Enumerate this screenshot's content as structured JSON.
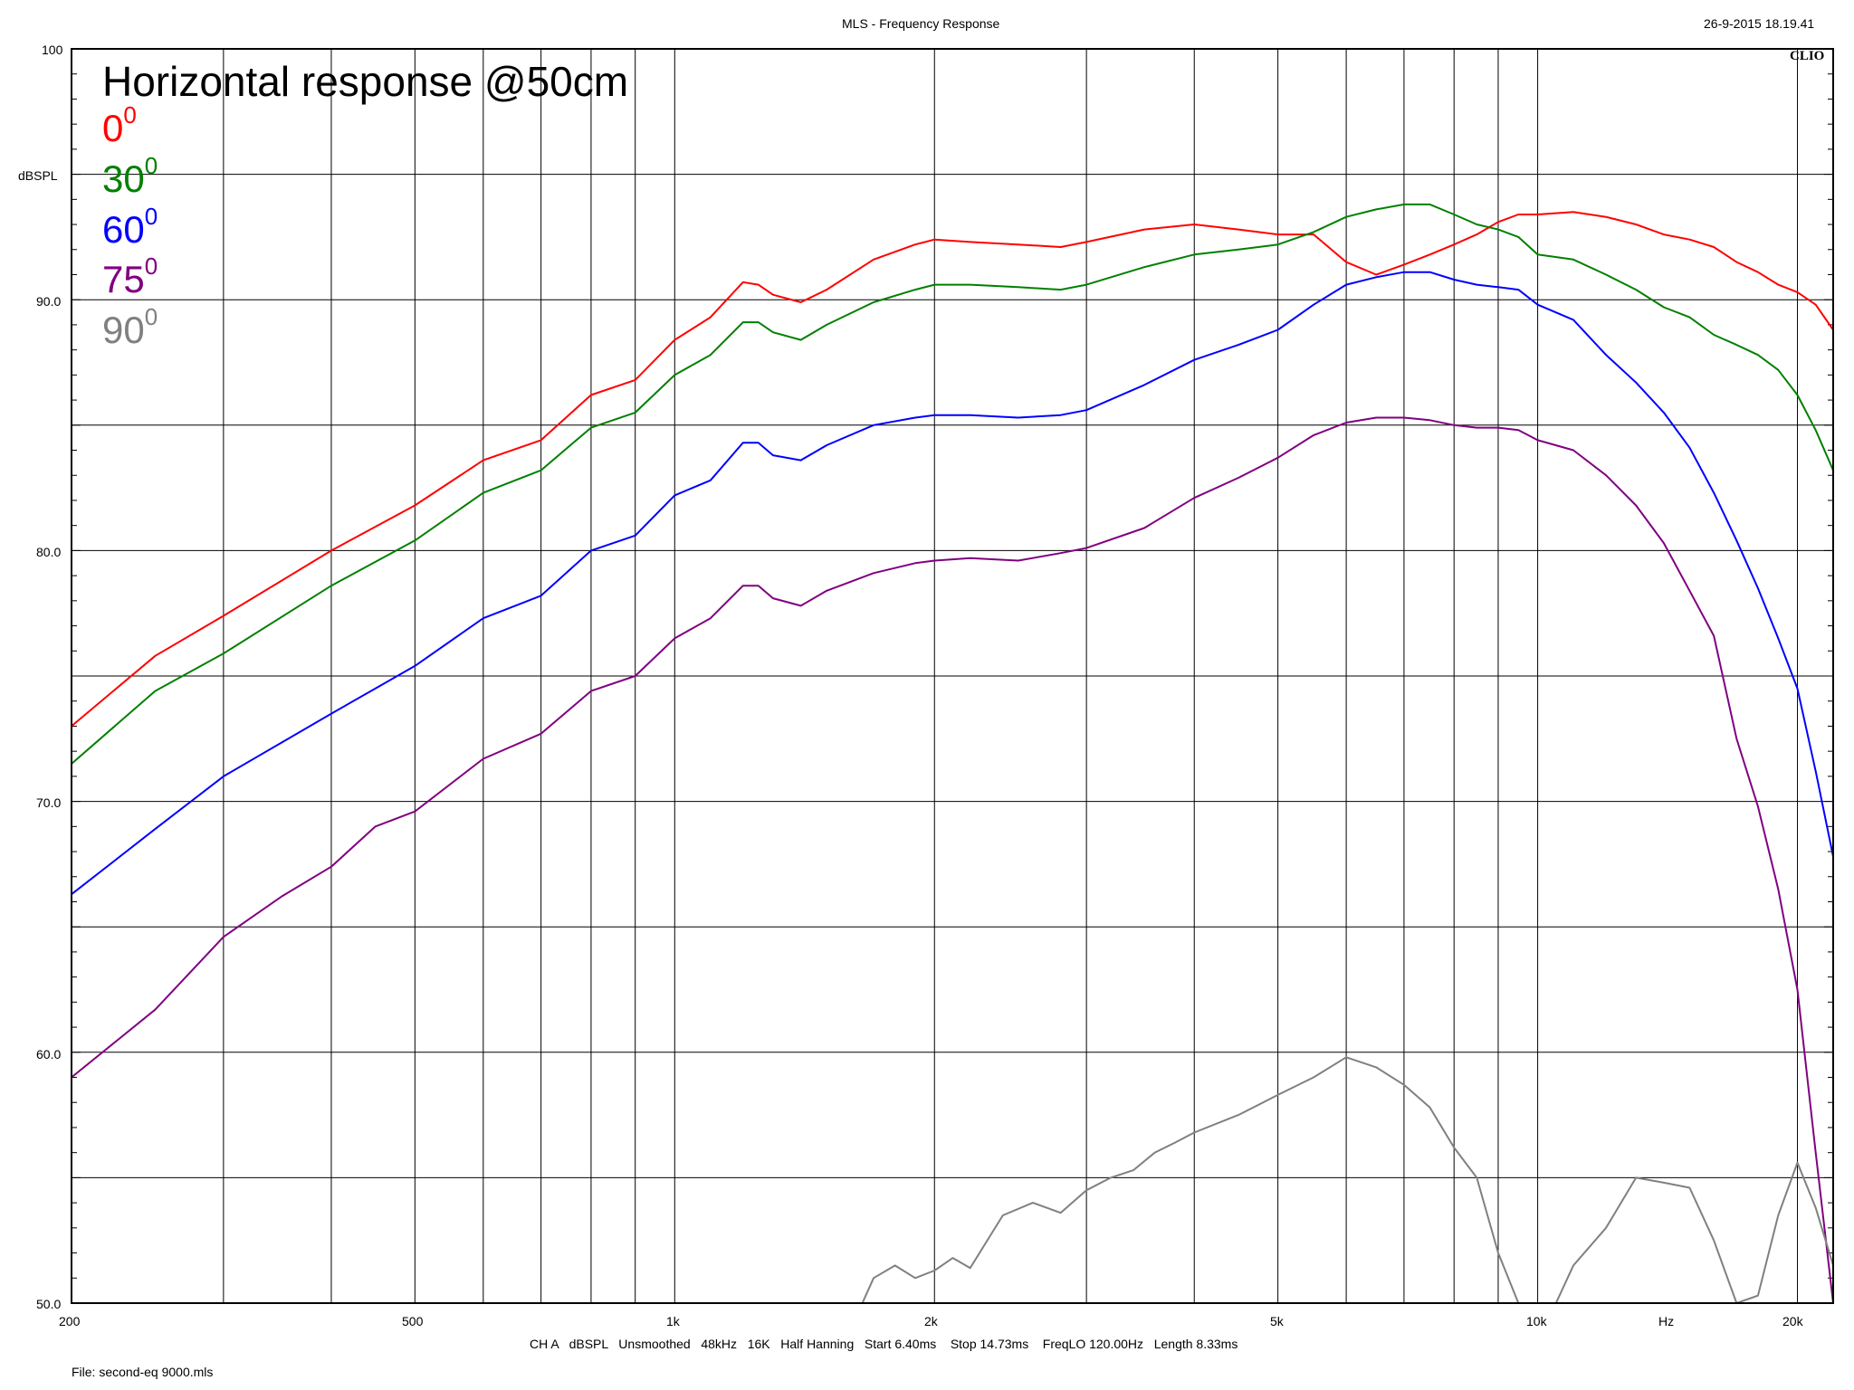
{
  "header": {
    "title": "MLS - Frequency Response",
    "timestamp": "26-9-2015 18.19.41",
    "brand": "CLIO"
  },
  "footer": {
    "settings": "CH A   dBSPL   Unsmoothed   48kHz   16K   Half Hanning   Start 6.40ms    Stop 14.73ms    FreqLO 120.00Hz   Length 8.33ms",
    "file": "File: second-eq 9000.mls"
  },
  "legend": {
    "title": "Horizontal response @50cm",
    "items": [
      {
        "name": "0",
        "sup": "0",
        "color": "#ff0000"
      },
      {
        "name": "30",
        "sup": "0",
        "color": "#008000"
      },
      {
        "name": "60",
        "sup": "0",
        "color": "#0000ff"
      },
      {
        "name": "75",
        "sup": "0",
        "color": "#800080"
      },
      {
        "name": "90",
        "sup": "0",
        "color": "#808080"
      }
    ]
  },
  "chart_data": {
    "type": "line",
    "title": "MLS - Frequency Response",
    "xscale": "log",
    "xlim": [
      200,
      22000
    ],
    "ylim": [
      50,
      100
    ],
    "ylabel": "dBSPL",
    "xlabel": "Hz",
    "x_ticks": [
      "200",
      "500",
      "1k",
      "2k",
      "5k",
      "10k",
      "Hz",
      "20k"
    ],
    "y_ticks": [
      "100",
      "dBSPL",
      "90.0",
      "80.0",
      "70.0",
      "60.0",
      "50.0"
    ],
    "grid": true,
    "series": [
      {
        "name": "0",
        "color": "#ff0000",
        "points": [
          [
            200,
            73.0
          ],
          [
            250,
            75.8
          ],
          [
            300,
            77.4
          ],
          [
            400,
            80.0
          ],
          [
            500,
            81.8
          ],
          [
            600,
            83.6
          ],
          [
            700,
            84.4
          ],
          [
            800,
            86.2
          ],
          [
            900,
            86.8
          ],
          [
            1000,
            88.4
          ],
          [
            1100,
            89.3
          ],
          [
            1200,
            90.7
          ],
          [
            1250,
            90.6
          ],
          [
            1300,
            90.2
          ],
          [
            1400,
            89.9
          ],
          [
            1500,
            90.4
          ],
          [
            1700,
            91.6
          ],
          [
            1900,
            92.2
          ],
          [
            2000,
            92.4
          ],
          [
            2200,
            92.3
          ],
          [
            2500,
            92.2
          ],
          [
            2800,
            92.1
          ],
          [
            3000,
            92.3
          ],
          [
            3500,
            92.8
          ],
          [
            4000,
            93.0
          ],
          [
            4500,
            92.8
          ],
          [
            5000,
            92.6
          ],
          [
            5500,
            92.6
          ],
          [
            6000,
            91.5
          ],
          [
            6500,
            91.0
          ],
          [
            7000,
            91.4
          ],
          [
            7500,
            91.8
          ],
          [
            8000,
            92.2
          ],
          [
            8500,
            92.6
          ],
          [
            9000,
            93.1
          ],
          [
            9500,
            93.4
          ],
          [
            10000,
            93.4
          ],
          [
            11000,
            93.5
          ],
          [
            12000,
            93.3
          ],
          [
            13000,
            93.0
          ],
          [
            14000,
            92.6
          ],
          [
            15000,
            92.4
          ],
          [
            16000,
            92.1
          ],
          [
            17000,
            91.5
          ],
          [
            18000,
            91.1
          ],
          [
            19000,
            90.6
          ],
          [
            20000,
            90.3
          ],
          [
            21000,
            89.8
          ],
          [
            22000,
            88.8
          ]
        ]
      },
      {
        "name": "30",
        "color": "#008000",
        "points": [
          [
            200,
            71.5
          ],
          [
            250,
            74.4
          ],
          [
            300,
            75.9
          ],
          [
            400,
            78.6
          ],
          [
            500,
            80.4
          ],
          [
            600,
            82.3
          ],
          [
            700,
            83.2
          ],
          [
            800,
            84.9
          ],
          [
            900,
            85.5
          ],
          [
            1000,
            87.0
          ],
          [
            1100,
            87.8
          ],
          [
            1200,
            89.1
          ],
          [
            1250,
            89.1
          ],
          [
            1300,
            88.7
          ],
          [
            1400,
            88.4
          ],
          [
            1500,
            89.0
          ],
          [
            1700,
            89.9
          ],
          [
            1900,
            90.4
          ],
          [
            2000,
            90.6
          ],
          [
            2200,
            90.6
          ],
          [
            2500,
            90.5
          ],
          [
            2800,
            90.4
          ],
          [
            3000,
            90.6
          ],
          [
            3500,
            91.3
          ],
          [
            4000,
            91.8
          ],
          [
            4500,
            92.0
          ],
          [
            5000,
            92.2
          ],
          [
            5500,
            92.7
          ],
          [
            6000,
            93.3
          ],
          [
            6500,
            93.6
          ],
          [
            7000,
            93.8
          ],
          [
            7500,
            93.8
          ],
          [
            8000,
            93.4
          ],
          [
            8500,
            93.0
          ],
          [
            9000,
            92.8
          ],
          [
            9500,
            92.5
          ],
          [
            10000,
            91.8
          ],
          [
            11000,
            91.6
          ],
          [
            12000,
            91.0
          ],
          [
            13000,
            90.4
          ],
          [
            14000,
            89.7
          ],
          [
            15000,
            89.3
          ],
          [
            16000,
            88.6
          ],
          [
            17000,
            88.2
          ],
          [
            18000,
            87.8
          ],
          [
            19000,
            87.2
          ],
          [
            20000,
            86.2
          ],
          [
            21000,
            84.8
          ],
          [
            22000,
            83.2
          ]
        ]
      },
      {
        "name": "60",
        "color": "#0000ff",
        "points": [
          [
            200,
            66.3
          ],
          [
            250,
            68.9
          ],
          [
            300,
            71.0
          ],
          [
            400,
            73.5
          ],
          [
            500,
            75.4
          ],
          [
            600,
            77.3
          ],
          [
            700,
            78.2
          ],
          [
            800,
            80.0
          ],
          [
            900,
            80.6
          ],
          [
            1000,
            82.2
          ],
          [
            1100,
            82.8
          ],
          [
            1200,
            84.3
          ],
          [
            1250,
            84.3
          ],
          [
            1300,
            83.8
          ],
          [
            1400,
            83.6
          ],
          [
            1500,
            84.2
          ],
          [
            1700,
            85.0
          ],
          [
            1900,
            85.3
          ],
          [
            2000,
            85.4
          ],
          [
            2200,
            85.4
          ],
          [
            2500,
            85.3
          ],
          [
            2800,
            85.4
          ],
          [
            3000,
            85.6
          ],
          [
            3500,
            86.6
          ],
          [
            4000,
            87.6
          ],
          [
            4500,
            88.2
          ],
          [
            5000,
            88.8
          ],
          [
            5500,
            89.8
          ],
          [
            6000,
            90.6
          ],
          [
            6500,
            90.9
          ],
          [
            7000,
            91.1
          ],
          [
            7500,
            91.1
          ],
          [
            8000,
            90.8
          ],
          [
            8500,
            90.6
          ],
          [
            9000,
            90.5
          ],
          [
            9500,
            90.4
          ],
          [
            10000,
            89.8
          ],
          [
            11000,
            89.2
          ],
          [
            12000,
            87.8
          ],
          [
            13000,
            86.7
          ],
          [
            14000,
            85.5
          ],
          [
            15000,
            84.1
          ],
          [
            16000,
            82.3
          ],
          [
            17000,
            80.4
          ],
          [
            18000,
            78.5
          ],
          [
            19000,
            76.5
          ],
          [
            20000,
            74.5
          ],
          [
            21000,
            71.2
          ],
          [
            22000,
            67.8
          ]
        ]
      },
      {
        "name": "75",
        "color": "#800080",
        "points": [
          [
            200,
            59.0
          ],
          [
            250,
            61.7
          ],
          [
            300,
            64.6
          ],
          [
            350,
            66.2
          ],
          [
            400,
            67.4
          ],
          [
            450,
            69.0
          ],
          [
            500,
            69.6
          ],
          [
            600,
            71.7
          ],
          [
            700,
            72.7
          ],
          [
            800,
            74.4
          ],
          [
            900,
            75.0
          ],
          [
            1000,
            76.5
          ],
          [
            1100,
            77.3
          ],
          [
            1200,
            78.6
          ],
          [
            1250,
            78.6
          ],
          [
            1300,
            78.1
          ],
          [
            1400,
            77.8
          ],
          [
            1500,
            78.4
          ],
          [
            1700,
            79.1
          ],
          [
            1900,
            79.5
          ],
          [
            2000,
            79.6
          ],
          [
            2200,
            79.7
          ],
          [
            2500,
            79.6
          ],
          [
            2800,
            79.9
          ],
          [
            3000,
            80.1
          ],
          [
            3500,
            80.9
          ],
          [
            4000,
            82.1
          ],
          [
            4500,
            82.9
          ],
          [
            5000,
            83.7
          ],
          [
            5500,
            84.6
          ],
          [
            6000,
            85.1
          ],
          [
            6500,
            85.3
          ],
          [
            7000,
            85.3
          ],
          [
            7500,
            85.2
          ],
          [
            8000,
            85.0
          ],
          [
            8500,
            84.9
          ],
          [
            9000,
            84.9
          ],
          [
            9500,
            84.8
          ],
          [
            10000,
            84.4
          ],
          [
            11000,
            84.0
          ],
          [
            12000,
            83.0
          ],
          [
            13000,
            81.8
          ],
          [
            14000,
            80.3
          ],
          [
            15000,
            78.4
          ],
          [
            16000,
            76.6
          ],
          [
            17000,
            72.5
          ],
          [
            18000,
            69.8
          ],
          [
            19000,
            66.5
          ],
          [
            20000,
            62.5
          ],
          [
            21000,
            56.0
          ],
          [
            22000,
            50.0
          ]
        ]
      },
      {
        "name": "90",
        "color": "#808080",
        "points": [
          [
            1650,
            50.0
          ],
          [
            1700,
            51.0
          ],
          [
            1800,
            51.5
          ],
          [
            1900,
            51.0
          ],
          [
            2000,
            51.3
          ],
          [
            2100,
            51.8
          ],
          [
            2200,
            51.4
          ],
          [
            2400,
            53.5
          ],
          [
            2600,
            54.0
          ],
          [
            2800,
            53.6
          ],
          [
            3000,
            54.5
          ],
          [
            3200,
            55.0
          ],
          [
            3400,
            55.3
          ],
          [
            3600,
            56.0
          ],
          [
            3800,
            56.4
          ],
          [
            4000,
            56.8
          ],
          [
            4500,
            57.5
          ],
          [
            5000,
            58.3
          ],
          [
            5500,
            59.0
          ],
          [
            6000,
            59.8
          ],
          [
            6500,
            59.4
          ],
          [
            7000,
            58.7
          ],
          [
            7500,
            57.8
          ],
          [
            8000,
            56.2
          ],
          [
            8500,
            55.0
          ],
          [
            9000,
            52.0
          ],
          [
            9500,
            50.0
          ],
          [
            10500,
            50.0
          ],
          [
            11000,
            51.5
          ],
          [
            12000,
            53.0
          ],
          [
            13000,
            55.0
          ],
          [
            14000,
            54.8
          ],
          [
            15000,
            54.6
          ],
          [
            16000,
            52.5
          ],
          [
            17000,
            50.0
          ],
          [
            18000,
            50.3
          ],
          [
            19000,
            53.5
          ],
          [
            20000,
            55.6
          ],
          [
            21000,
            53.8
          ],
          [
            22000,
            51.5
          ]
        ]
      }
    ]
  }
}
